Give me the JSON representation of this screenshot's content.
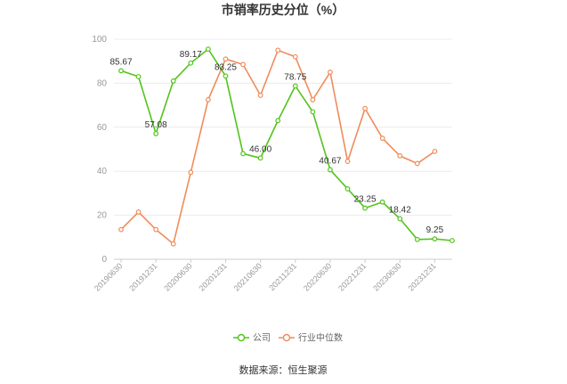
{
  "chart_data": {
    "type": "line",
    "title": "市销率历史分位（%）",
    "source": "数据来源：恒生聚源",
    "ylim": [
      0,
      100
    ],
    "yticks": [
      0,
      20,
      40,
      60,
      80,
      100
    ],
    "grid": true,
    "legend_position": "bottom",
    "x": [
      "20190630",
      "20190930",
      "20191231",
      "20200331",
      "20200630",
      "20200930",
      "20201231",
      "20210331",
      "20210630",
      "20210930",
      "20211231",
      "20220331",
      "20220630",
      "20220930",
      "20221231",
      "20230331",
      "20230630",
      "20230930",
      "20231231",
      "20240331"
    ],
    "x_tick_labels": [
      "20190630",
      "20191231",
      "20200630",
      "20201231",
      "20210630",
      "20211231",
      "20220630",
      "20221231",
      "20230630",
      "20231231"
    ],
    "series": [
      {
        "name": "公司",
        "color": "#52c41a",
        "values": [
          85.67,
          83,
          57.08,
          81,
          89.17,
          95.5,
          83.25,
          48,
          46.0,
          63,
          78.75,
          67,
          40.67,
          32,
          23.25,
          26,
          18.42,
          9,
          9.25,
          8.5
        ],
        "labels": [
          {
            "index": 0,
            "text": "85.67"
          },
          {
            "index": 2,
            "text": "57.08"
          },
          {
            "index": 4,
            "text": "89.17"
          },
          {
            "index": 6,
            "text": "83.25"
          },
          {
            "index": 8,
            "text": "46.00"
          },
          {
            "index": 10,
            "text": "78.75"
          },
          {
            "index": 12,
            "text": "40.67"
          },
          {
            "index": 14,
            "text": "23.25"
          },
          {
            "index": 16,
            "text": "18.42"
          },
          {
            "index": 18,
            "text": "9.25"
          }
        ]
      },
      {
        "name": "行业中位数",
        "color": "#f08c5a",
        "values": [
          13.5,
          21.5,
          13.5,
          7,
          39.5,
          72.5,
          91,
          88.5,
          74.5,
          95,
          92,
          72.5,
          85,
          44.5,
          68.5,
          55,
          47,
          43.5,
          49,
          null
        ]
      }
    ]
  }
}
